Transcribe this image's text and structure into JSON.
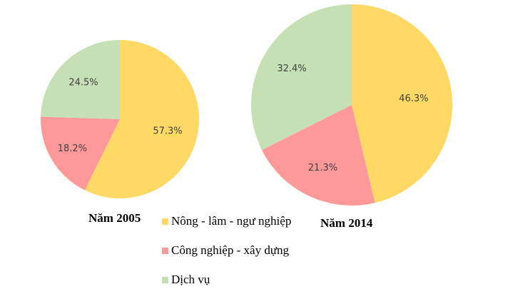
{
  "chart_data": [
    {
      "type": "pie",
      "title": "Năm 2005",
      "categories": [
        "Nông - lâm - ngư nghiệp",
        "Công nghiệp - xây dựng",
        "Dịch vụ"
      ],
      "values": [
        57.3,
        18.2,
        24.5
      ],
      "labels": [
        "57.3%",
        "18.2%",
        "24.5%"
      ],
      "colors": [
        "#FFD966",
        "#FF9999",
        "#C5E0B4"
      ]
    },
    {
      "type": "pie",
      "title": "Năm 2014",
      "categories": [
        "Nông - lâm - ngư nghiệp",
        "Công nghiệp - xây dựng",
        "Dịch vụ"
      ],
      "values": [
        46.3,
        21.3,
        32.4
      ],
      "labels": [
        "46.3%",
        "21.3%",
        "32.4%"
      ],
      "colors": [
        "#FFD966",
        "#FF9999",
        "#C5E0B4"
      ]
    }
  ],
  "legend": {
    "position": "center-bottom",
    "items": [
      {
        "label": "Nông - lâm - ngư nghiệp",
        "color": "#FFD966"
      },
      {
        "label": "Công nghiệp - xây dựng",
        "color": "#FF9999"
      },
      {
        "label": "Dịch vụ",
        "color": "#C5E0B4"
      }
    ]
  }
}
